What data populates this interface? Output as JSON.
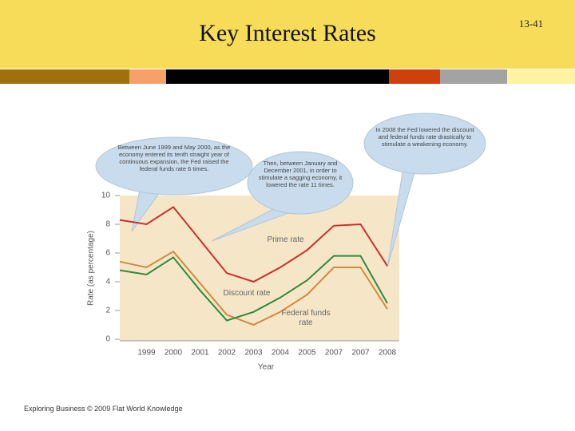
{
  "slide_title": "Key Interest Rates",
  "slide_number": "13-41",
  "footer": "Exploring Business © 2009 Flat World Knowledge",
  "chart_data": {
    "type": "line",
    "x_label": "Year",
    "y_label": "Rate (as percentage)",
    "categories": [
      null,
      "1999",
      "2000",
      "2001",
      "2002",
      "2003",
      "2004",
      "2005",
      "2007",
      "2007",
      "2008"
    ],
    "series": [
      {
        "name": "Prime rate",
        "color": "#c8302a",
        "values": [
          8.3,
          8.0,
          9.2,
          6.9,
          4.6,
          4.0,
          5.0,
          6.2,
          7.9,
          8.0,
          5.1
        ]
      },
      {
        "name": "Discount rate",
        "color": "#d08a40",
        "values": [
          5.4,
          5.0,
          6.1,
          3.9,
          1.7,
          1.0,
          1.9,
          3.1,
          5.0,
          5.0,
          2.1
        ]
      },
      {
        "name": "Federal funds rate",
        "color": "#2f8a3a",
        "values": [
          4.8,
          4.5,
          5.7,
          3.4,
          1.3,
          1.9,
          2.9,
          4.1,
          5.8,
          5.8,
          2.5
        ]
      }
    ],
    "ylim": [
      0,
      10
    ],
    "yticks": [
      0,
      2,
      4,
      6,
      8,
      10
    ],
    "grid": false,
    "annotations": [
      "Between June 1999 and May 2000, as the economy entered its tenth straight year of continuous expansion, the Fed raised the federal funds rate 6 times.",
      "Then, between January and December 2001, in order to stimulate a sagging economy, it lowered the rate 11 times.",
      "In 2008 the Fed lowered the discount and federal funds rate drastically to stimulate a weakening economy."
    ]
  }
}
